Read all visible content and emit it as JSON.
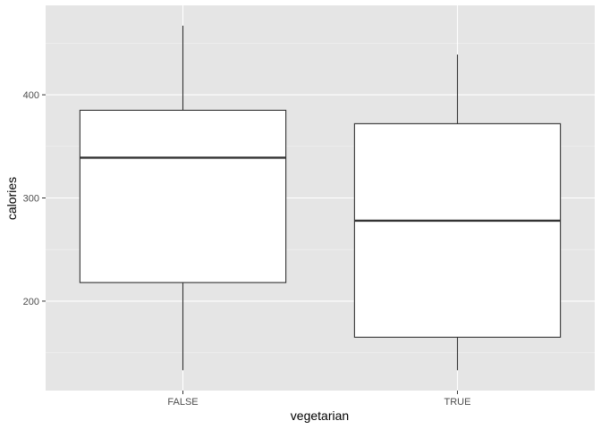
{
  "chart_data": {
    "type": "box",
    "title": "",
    "xlabel": "vegetarian",
    "ylabel": "calories",
    "categories": [
      "FALSE",
      "TRUE"
    ],
    "boxes": [
      {
        "category": "FALSE",
        "whisker_low": 133,
        "q1": 218,
        "median": 339,
        "q3": 385,
        "whisker_high": 467
      },
      {
        "category": "TRUE",
        "whisker_low": 133,
        "q1": 165,
        "median": 278,
        "q3": 372,
        "whisker_high": 439
      }
    ],
    "y_ticks": [
      200,
      300,
      400
    ],
    "y_tick_labels": [
      "200",
      "300",
      "400"
    ],
    "y_minor_ticks": [
      150,
      250,
      350,
      450
    ],
    "ylim": [
      113.3,
      486.7
    ],
    "grid": true,
    "legend": "none",
    "colors": {
      "panel_background": "#e5e5e5",
      "grid_major": "#ffffff",
      "grid_minor": "#f2f2f2",
      "box_fill": "#ffffff",
      "box_outline": "#333333",
      "axis_text": "#4d4d4d",
      "axis_title": "#000000",
      "tick_mark": "#333333"
    }
  }
}
